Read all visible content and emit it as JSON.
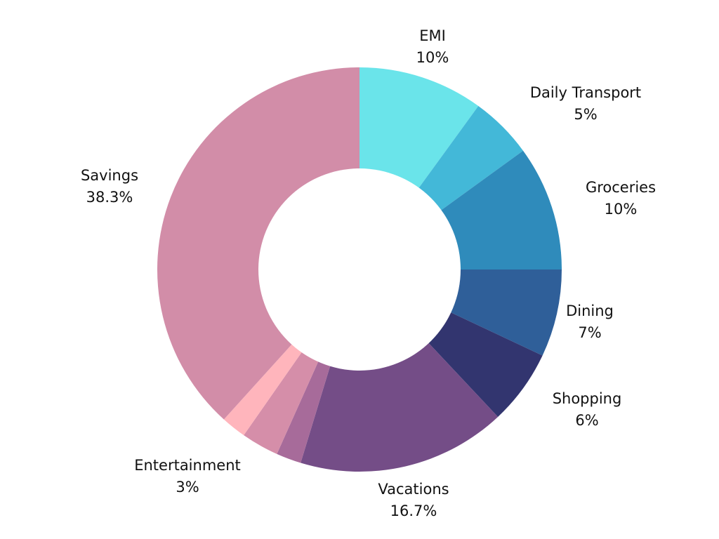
{
  "chart_data": {
    "type": "pie",
    "subtype": "donut",
    "title": "",
    "slices": [
      {
        "label": "EMI",
        "value": 10,
        "value_label": "10%",
        "color": "#6ae4ea",
        "labeled": true
      },
      {
        "label": "Daily Transport",
        "value": 5,
        "value_label": "5%",
        "color": "#43b8d8",
        "labeled": true
      },
      {
        "label": "Groceries",
        "value": 10,
        "value_label": "10%",
        "color": "#2f8bbb",
        "labeled": true
      },
      {
        "label": "Dining",
        "value": 7,
        "value_label": "7%",
        "color": "#2f5f99",
        "labeled": true
      },
      {
        "label": "Shopping",
        "value": 6,
        "value_label": "6%",
        "color": "#32356f",
        "labeled": true
      },
      {
        "label": "Vacations",
        "value": 16.7,
        "value_label": "16.7%",
        "color": "#744d87",
        "labeled": true
      },
      {
        "label": "",
        "value": 2,
        "value_label": "",
        "color": "#a76b9a",
        "labeled": false
      },
      {
        "label": "Entertainment",
        "value": 3,
        "value_label": "3%",
        "color": "#d58ea9",
        "labeled": true
      },
      {
        "label": "",
        "value": 2,
        "value_label": "",
        "color": "#ffb5bc",
        "labeled": false
      },
      {
        "label": "Savings",
        "value": 38.3,
        "value_label": "38.3%",
        "color": "#d28da8",
        "labeled": true
      }
    ]
  }
}
